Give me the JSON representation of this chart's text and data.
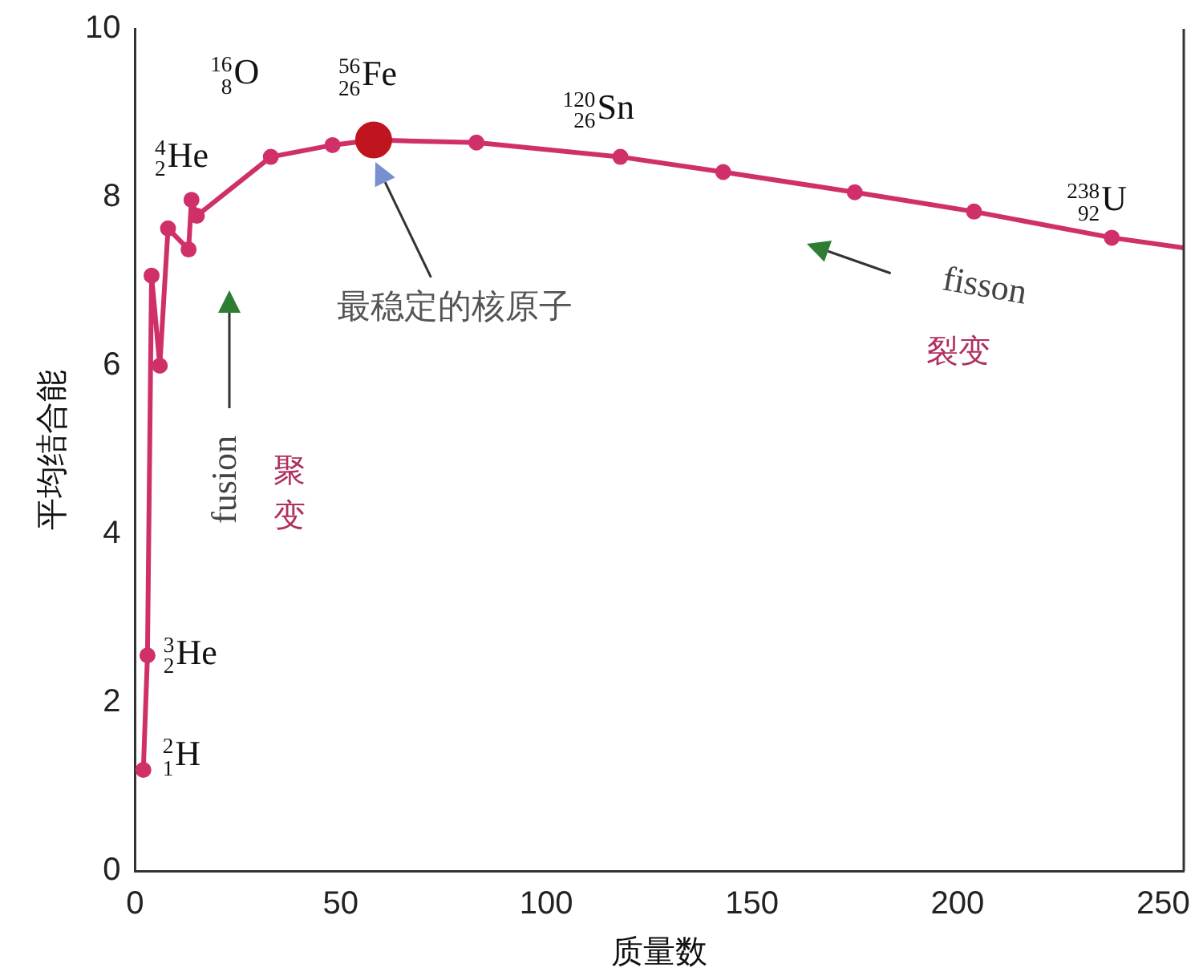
{
  "chart_data": {
    "type": "line",
    "xlabel": "质量数",
    "ylabel": "平均结合能",
    "xlim": [
      0,
      255
    ],
    "xticks": [
      0,
      50,
      100,
      150,
      200,
      250
    ],
    "ylim": [
      0,
      10
    ],
    "yticks": [
      0,
      2,
      4,
      6,
      8,
      10
    ],
    "grid": false,
    "legend": false,
    "marker": "circle",
    "line_style": "solid",
    "series": [
      {
        "color": "#d0306a",
        "x": [
          2,
          3,
          4,
          6,
          8,
          13,
          13.7,
          15,
          33,
          48,
          58,
          83,
          118,
          143,
          175,
          204,
          237.5,
          255
        ],
        "values": [
          1.2,
          2.56,
          7.07,
          6.0,
          7.63,
          7.38,
          7.97,
          7.78,
          8.48,
          8.62,
          8.68,
          8.65,
          8.48,
          8.3,
          8.06,
          7.83,
          7.52,
          7.4
        ]
      },
      {
        "type": "scatter",
        "color": "#c0141e",
        "x": [
          58
        ],
        "values": [
          8.68
        ]
      }
    ],
    "annotations": [
      {
        "text": "$^{2}$$_{1}$H",
        "x": 2,
        "y": 1.2
      },
      {
        "text": "$^{3}$$_{2}$He",
        "x": 3,
        "y": 2.56
      },
      {
        "text": "$^{4}$$_{2}$He",
        "x": 4,
        "y": 7.07
      },
      "$^{16}$$_{8}$O",
      {
        "text": "$^{56}$$_{26}$Fe",
        "x": 58,
        "y": 8.68
      },
      {
        "text": "$^{120}$$_{26}$Sn",
        "x": 118,
        "y": 8.48
      },
      {
        "text": "$^{238}$$_{92}$U",
        "x": 237.5,
        "y": 7.52
      },
      "最稳定的核原子",
      "fusion",
      "聚变",
      "fisson",
      "裂变"
    ]
  }
}
